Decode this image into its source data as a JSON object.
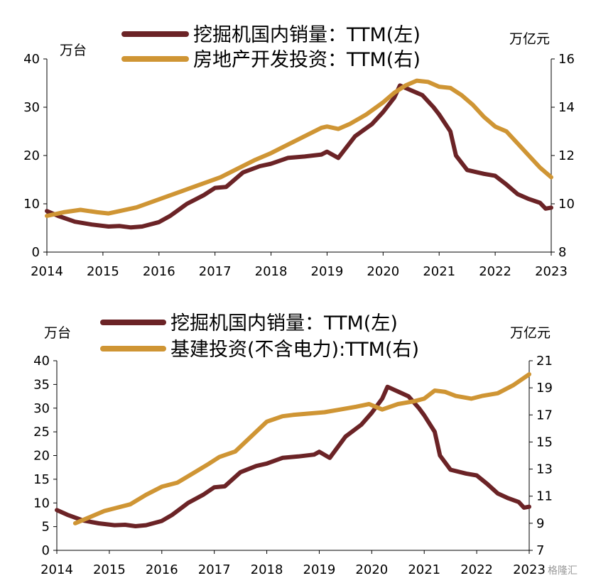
{
  "colors": {
    "excavator": "#6b2326",
    "investment": "#cf9534"
  },
  "watermark": "格隆汇",
  "chart_data": [
    {
      "type": "line",
      "title": "",
      "left_unit": "万台",
      "right_unit": "万亿元",
      "x_ticks": [
        "2014",
        "2015",
        "2016",
        "2017",
        "2018",
        "2019",
        "2020",
        "2021",
        "2022",
        "2023"
      ],
      "xlim": [
        2014,
        2023
      ],
      "left_ylim": [
        0,
        40
      ],
      "left_ticks": [
        "0",
        "10",
        "20",
        "30",
        "40"
      ],
      "right_ylim": [
        8,
        16
      ],
      "right_ticks": [
        "8",
        "10",
        "12",
        "14",
        "16"
      ],
      "series": [
        {
          "name": "挖掘机国内销量：TTM(左)",
          "axis": "left",
          "color_key": "excavator",
          "x": [
            2014.0,
            2014.2,
            2014.5,
            2014.8,
            2015.1,
            2015.3,
            2015.5,
            2015.7,
            2016.0,
            2016.2,
            2016.5,
            2016.8,
            2017.0,
            2017.2,
            2017.5,
            2017.8,
            2018.0,
            2018.3,
            2018.6,
            2018.9,
            2019.0,
            2019.2,
            2019.3,
            2019.5,
            2019.8,
            2020.0,
            2020.2,
            2020.3,
            2020.5,
            2020.7,
            2020.9,
            2021.0,
            2021.2,
            2021.3,
            2021.5,
            2021.8,
            2022.0,
            2022.2,
            2022.4,
            2022.6,
            2022.8,
            2022.9,
            2023.0
          ],
          "values": [
            8.5,
            7.5,
            6.3,
            5.7,
            5.3,
            5.4,
            5.1,
            5.3,
            6.2,
            7.5,
            10.0,
            11.8,
            13.3,
            13.5,
            16.5,
            17.8,
            18.3,
            19.5,
            19.8,
            20.2,
            20.8,
            19.5,
            21.0,
            24.0,
            26.5,
            29.0,
            32.0,
            34.5,
            33.5,
            32.5,
            30.0,
            28.5,
            25.0,
            20.0,
            17.0,
            16.2,
            15.8,
            14.0,
            12.0,
            11.0,
            10.2,
            9.0,
            9.2
          ]
        },
        {
          "name": "房地产开发投资：TTM(右)",
          "axis": "right",
          "color_key": "investment",
          "x": [
            2014.0,
            2014.3,
            2014.6,
            2014.9,
            2015.1,
            2015.3,
            2015.6,
            2015.9,
            2016.2,
            2016.5,
            2016.8,
            2017.1,
            2017.4,
            2017.7,
            2018.0,
            2018.3,
            2018.6,
            2018.9,
            2019.0,
            2019.2,
            2019.4,
            2019.7,
            2020.0,
            2020.2,
            2020.4,
            2020.6,
            2020.8,
            2021.0,
            2021.2,
            2021.4,
            2021.6,
            2021.8,
            2022.0,
            2022.2,
            2022.4,
            2022.6,
            2022.8,
            2023.0
          ],
          "values": [
            9.5,
            9.65,
            9.75,
            9.65,
            9.6,
            9.7,
            9.85,
            10.1,
            10.35,
            10.6,
            10.85,
            11.1,
            11.45,
            11.8,
            12.1,
            12.45,
            12.8,
            13.15,
            13.2,
            13.1,
            13.3,
            13.7,
            14.2,
            14.6,
            14.9,
            15.1,
            15.05,
            14.85,
            14.8,
            14.5,
            14.1,
            13.6,
            13.2,
            13.0,
            12.5,
            12.0,
            11.5,
            11.1
          ]
        }
      ]
    },
    {
      "type": "line",
      "title": "",
      "left_unit": "万台",
      "right_unit": "万亿元",
      "x_ticks": [
        "2014",
        "2015",
        "2016",
        "2017",
        "2018",
        "2019",
        "2020",
        "2021",
        "2022",
        "2023"
      ],
      "xlim": [
        2014,
        2023
      ],
      "left_ylim": [
        0,
        40
      ],
      "left_ticks": [
        "0",
        "5",
        "10",
        "15",
        "20",
        "25",
        "30",
        "35",
        "40"
      ],
      "right_ylim": [
        7,
        21
      ],
      "right_ticks": [
        "7",
        "9",
        "11",
        "13",
        "15",
        "17",
        "19",
        "21"
      ],
      "series": [
        {
          "name": "挖掘机国内销量：TTM(左)",
          "axis": "left",
          "color_key": "excavator",
          "x": [
            2014.0,
            2014.2,
            2014.5,
            2014.8,
            2015.1,
            2015.3,
            2015.5,
            2015.7,
            2016.0,
            2016.2,
            2016.5,
            2016.8,
            2017.0,
            2017.2,
            2017.5,
            2017.8,
            2018.0,
            2018.3,
            2018.6,
            2018.9,
            2019.0,
            2019.2,
            2019.3,
            2019.5,
            2019.8,
            2020.0,
            2020.2,
            2020.3,
            2020.5,
            2020.7,
            2020.9,
            2021.0,
            2021.2,
            2021.3,
            2021.5,
            2021.8,
            2022.0,
            2022.2,
            2022.4,
            2022.6,
            2022.8,
            2022.9,
            2023.0
          ],
          "values": [
            8.5,
            7.5,
            6.3,
            5.7,
            5.3,
            5.4,
            5.1,
            5.3,
            6.2,
            7.5,
            10.0,
            11.8,
            13.3,
            13.5,
            16.5,
            17.8,
            18.3,
            19.5,
            19.8,
            20.2,
            20.8,
            19.5,
            21.0,
            24.0,
            26.5,
            29.0,
            32.0,
            34.5,
            33.5,
            32.5,
            30.0,
            28.5,
            25.0,
            20.0,
            17.0,
            16.2,
            15.8,
            14.0,
            12.0,
            11.0,
            10.2,
            9.0,
            9.2
          ]
        },
        {
          "name": "基建投资(不含电力):TTM(右)",
          "axis": "right",
          "color_key": "investment",
          "x": [
            2014.35,
            2014.6,
            2014.9,
            2015.1,
            2015.4,
            2015.7,
            2016.0,
            2016.3,
            2016.6,
            2016.9,
            2017.1,
            2017.4,
            2017.7,
            2018.0,
            2018.3,
            2018.5,
            2018.8,
            2019.1,
            2019.4,
            2019.7,
            2019.95,
            2020.2,
            2020.5,
            2020.8,
            2021.0,
            2021.2,
            2021.4,
            2021.6,
            2021.9,
            2022.1,
            2022.4,
            2022.7,
            2023.0
          ],
          "values": [
            9.0,
            9.4,
            9.9,
            10.1,
            10.4,
            11.1,
            11.7,
            12.0,
            12.7,
            13.4,
            13.9,
            14.3,
            15.4,
            16.5,
            16.9,
            17.0,
            17.1,
            17.2,
            17.4,
            17.6,
            17.8,
            17.4,
            17.8,
            18.0,
            18.2,
            18.8,
            18.7,
            18.4,
            18.2,
            18.4,
            18.6,
            19.2,
            20.0
          ]
        }
      ]
    }
  ]
}
